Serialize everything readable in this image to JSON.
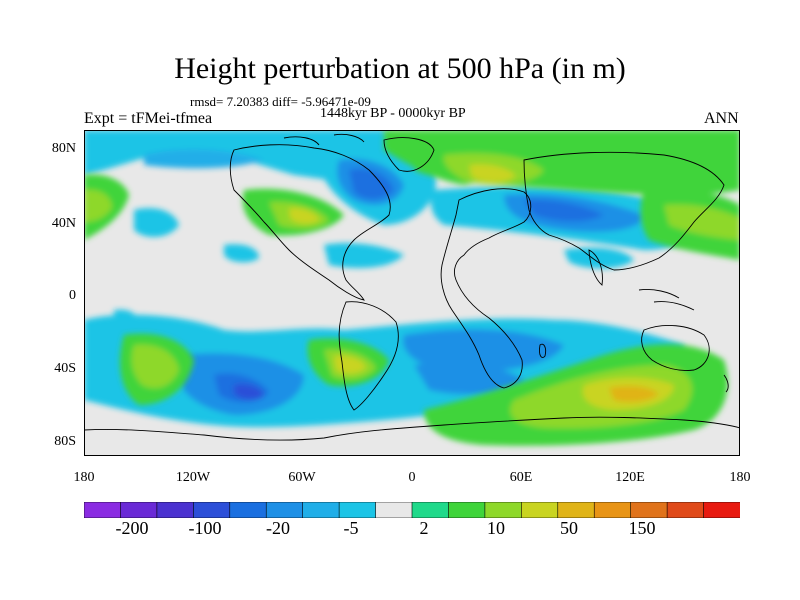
{
  "title": "Height perturbation at 500 hPa (in m)",
  "stats": "rmsd= 7.20383 diff= -5.96471e-09",
  "period": "1448kyr BP - 0000kyr BP",
  "experiment": "Expt = tFMei-tfmea",
  "season": "ANN",
  "axes": {
    "y_ticks": [
      "80N",
      "40N",
      "0",
      "40S",
      "80S"
    ],
    "x_ticks": [
      "180",
      "120W",
      "60W",
      "0",
      "60E",
      "120E",
      "180"
    ]
  },
  "colorbar": {
    "labels": [
      "-200",
      "-100",
      "-20",
      "-5",
      "2",
      "10",
      "50",
      "150"
    ],
    "colors": [
      "#8a2be2",
      "#6a2ad6",
      "#4b32d0",
      "#2c4fd8",
      "#1a6fe0",
      "#1e90e6",
      "#20aee8",
      "#1cc4e6",
      "#e8e8e8",
      "#1fd98a",
      "#3fd43a",
      "#8ed82a",
      "#c9d421",
      "#e0b418",
      "#e89416",
      "#e0731b",
      "#e04a1a",
      "#e81a10"
    ]
  },
  "map": {
    "background_color": "#e8e8e8",
    "coastline_color": "#000000"
  }
}
